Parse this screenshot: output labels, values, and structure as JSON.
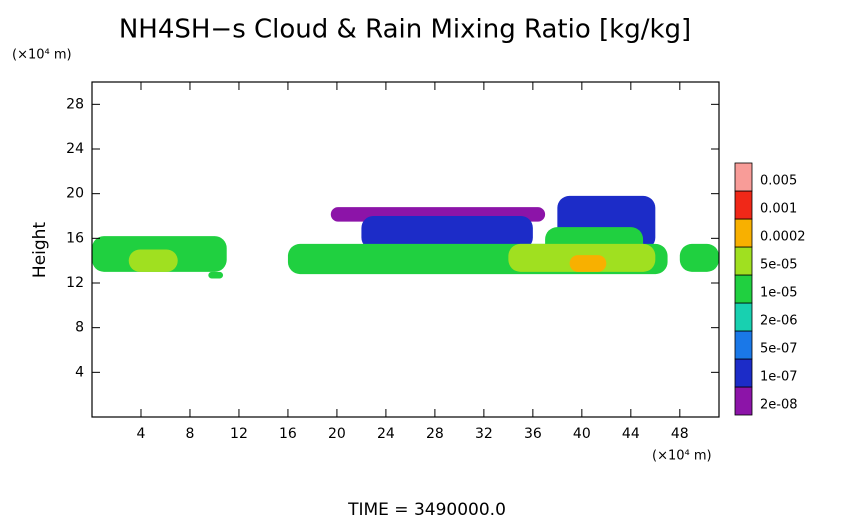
{
  "chart_data": {
    "type": "heatmap",
    "title": "NH4SH−s Cloud & Rain Mixing Ratio [kg/kg]",
    "y_unit": "(×10⁴ m)",
    "x_unit": "(×10⁴ m)",
    "ylabel": "Height",
    "footer": "TIME = 3490000.0",
    "xlim": [
      0,
      51.2
    ],
    "ylim": [
      0,
      30
    ],
    "xticks": [
      4,
      8,
      12,
      16,
      20,
      24,
      28,
      32,
      36,
      40,
      44,
      48
    ],
    "yticks": [
      4,
      8,
      12,
      16,
      20,
      24,
      28
    ],
    "levels": [
      {
        "value": 2e-08,
        "label": "2e-08",
        "color": "#8c14a8"
      },
      {
        "value": 1e-07,
        "label": "1e-07",
        "color": "#1c2cc8"
      },
      {
        "value": 5e-07,
        "label": "5e-07",
        "color": "#1a78e8"
      },
      {
        "value": 2e-06,
        "label": "2e-06",
        "color": "#18d0b0"
      },
      {
        "value": 1e-05,
        "label": "1e-05",
        "color": "#20d040"
      },
      {
        "value": 5e-05,
        "label": "5e-05",
        "color": "#a0e020"
      },
      {
        "value": 0.0002,
        "label": "0.0002",
        "color": "#f8b000"
      },
      {
        "value": 0.001,
        "label": "0.001",
        "color": "#f02818"
      },
      {
        "value": 0.005,
        "label": "0.005",
        "color": "#f89c98"
      }
    ],
    "patches": [
      {
        "x": [
          19.5,
          37
        ],
        "y": [
          17.5,
          18.8
        ],
        "value": 2e-08
      },
      {
        "x": [
          22,
          36
        ],
        "y": [
          15,
          18
        ],
        "value": 1e-07
      },
      {
        "x": [
          38,
          46
        ],
        "y": [
          15,
          19.8
        ],
        "value": 1e-07
      },
      {
        "x": [
          0,
          11
        ],
        "y": [
          13,
          16.2
        ],
        "value": 1e-05
      },
      {
        "x": [
          9.5,
          10.7
        ],
        "y": [
          12.4,
          13
        ],
        "value": 1e-05
      },
      {
        "x": [
          16,
          47
        ],
        "y": [
          12.8,
          15.5
        ],
        "value": 1e-05
      },
      {
        "x": [
          37,
          45
        ],
        "y": [
          14,
          17
        ],
        "value": 1e-05
      },
      {
        "x": [
          48,
          51.2
        ],
        "y": [
          13,
          15.5
        ],
        "value": 1e-05
      },
      {
        "x": [
          3,
          7
        ],
        "y": [
          13,
          15
        ],
        "value": 5e-05
      },
      {
        "x": [
          34,
          46
        ],
        "y": [
          13,
          15.5
        ],
        "value": 5e-05
      },
      {
        "x": [
          39,
          42
        ],
        "y": [
          13,
          14.5
        ],
        "value": 0.0002
      }
    ]
  }
}
